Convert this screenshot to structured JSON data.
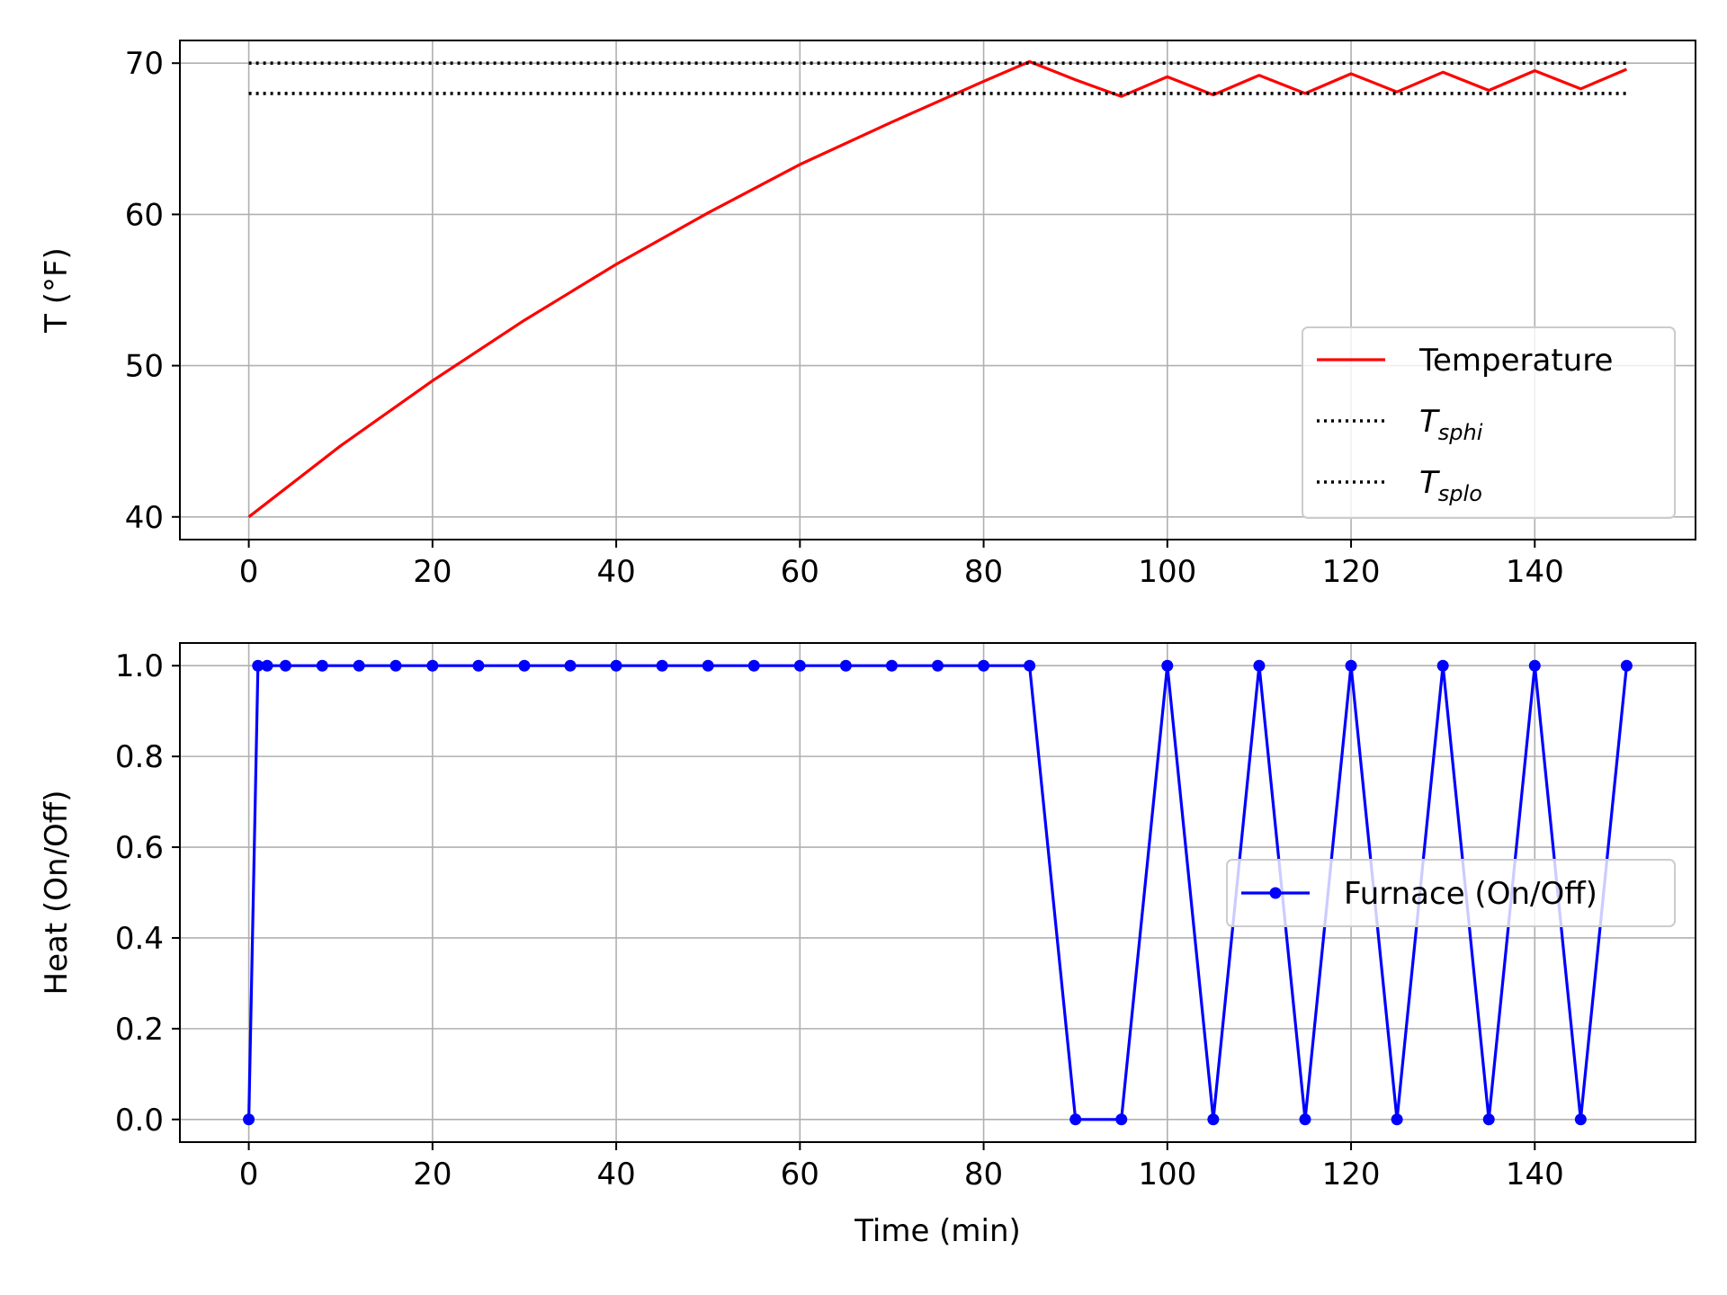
{
  "chart_data": [
    {
      "type": "line",
      "title": "",
      "xlabel": "",
      "ylabel": "T (°F)",
      "xlim": [
        -7.5,
        157.5
      ],
      "ylim": [
        38.5,
        71.5
      ],
      "xticks": [
        0,
        20,
        40,
        60,
        80,
        100,
        120,
        140
      ],
      "xtick_labels": [
        "0",
        "20",
        "40",
        "60",
        "80",
        "100",
        "120",
        "140"
      ],
      "yticks": [
        40,
        50,
        60,
        70
      ],
      "ytick_labels": [
        "40",
        "50",
        "60",
        "70"
      ],
      "grid": true,
      "legend_position": "lower right",
      "series": [
        {
          "name": "Temperature",
          "color": "#ff0000",
          "linestyle": "solid",
          "x": [
            0,
            10,
            20,
            30,
            40,
            50,
            60,
            70,
            80,
            85,
            90,
            95,
            100,
            105,
            110,
            115,
            120,
            125,
            130,
            135,
            140,
            145,
            150
          ],
          "y": [
            40.0,
            44.7,
            49.0,
            53.0,
            56.7,
            60.1,
            63.3,
            66.1,
            68.8,
            70.1,
            68.9,
            67.8,
            69.1,
            67.9,
            69.2,
            68.0,
            69.3,
            68.1,
            69.4,
            68.2,
            69.5,
            68.3,
            69.6
          ]
        },
        {
          "name": "T_sphi",
          "label_main": "T",
          "label_sub": "sphi",
          "color": "#000000",
          "linestyle": "dotted",
          "x": [
            0,
            150
          ],
          "y": [
            70,
            70
          ]
        },
        {
          "name": "T_splo",
          "label_main": "T",
          "label_sub": "splo",
          "color": "#000000",
          "linestyle": "dotted",
          "x": [
            0,
            150
          ],
          "y": [
            68,
            68
          ]
        }
      ]
    },
    {
      "type": "line",
      "title": "",
      "xlabel": "Time (min)",
      "ylabel": "Heat (On/Off)",
      "xlim": [
        -7.5,
        157.5
      ],
      "ylim": [
        -0.05,
        1.05
      ],
      "xticks": [
        0,
        20,
        40,
        60,
        80,
        100,
        120,
        140
      ],
      "xtick_labels": [
        "0",
        "20",
        "40",
        "60",
        "80",
        "100",
        "120",
        "140"
      ],
      "yticks": [
        0,
        0.2,
        0.4,
        0.6,
        0.8,
        1.0
      ],
      "ytick_labels": [
        "0.0",
        "0.2",
        "0.4",
        "0.6",
        "0.8",
        "1.0"
      ],
      "grid": true,
      "legend_position": "center right",
      "series": [
        {
          "name": "Furnace (On/Off)",
          "color": "#0000ff",
          "linestyle": "solid",
          "marker": "circle",
          "x": [
            0,
            1,
            2,
            4,
            8,
            12,
            16,
            20,
            25,
            30,
            35,
            40,
            45,
            50,
            55,
            60,
            65,
            70,
            75,
            80,
            85,
            90,
            95,
            100,
            105,
            110,
            115,
            120,
            125,
            130,
            135,
            140,
            145,
            150
          ],
          "y": [
            0,
            1,
            1,
            1,
            1,
            1,
            1,
            1,
            1,
            1,
            1,
            1,
            1,
            1,
            1,
            1,
            1,
            1,
            1,
            1,
            1,
            0,
            0,
            1,
            0,
            1,
            0,
            1,
            0,
            1,
            0,
            1,
            0,
            1
          ]
        }
      ]
    }
  ]
}
